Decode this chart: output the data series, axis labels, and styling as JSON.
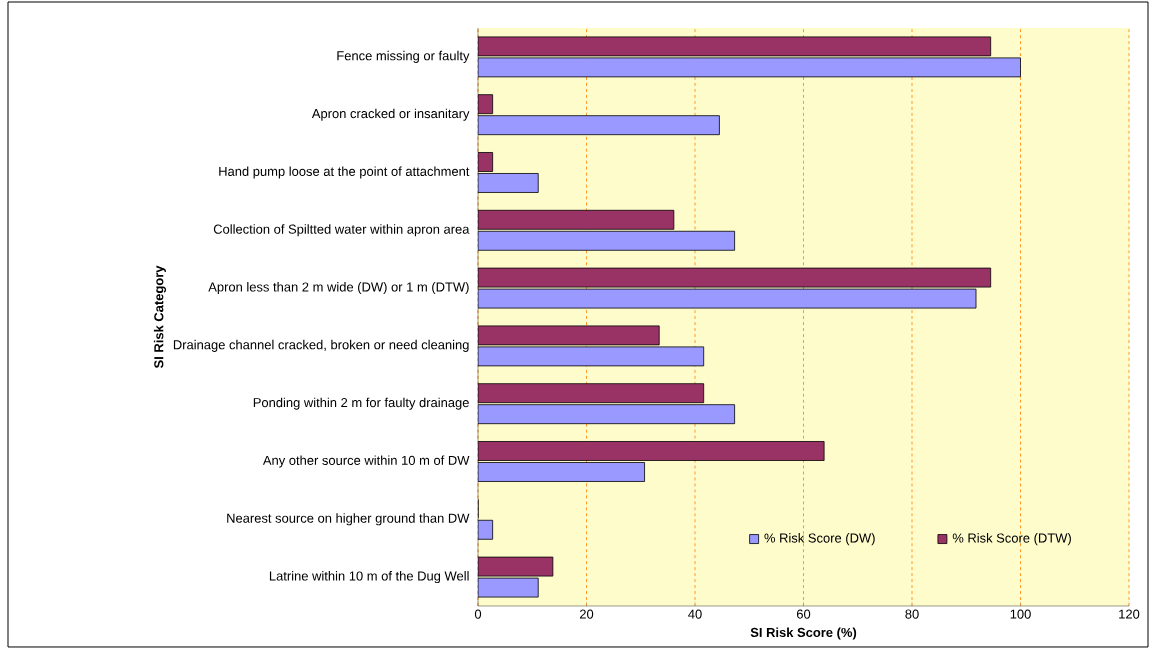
{
  "chart_data": {
    "type": "bar",
    "orientation": "horizontal",
    "xlabel": "SI Risk Score (%)",
    "ylabel": "SI Risk Category",
    "categories": [
      "Fence missing or faulty",
      "Apron cracked or insanitary",
      "Hand pump loose at the point of attachment",
      "Collection of Spiltted water within apron area",
      "Apron less than 2 m wide (DW) or 1 m (DTW)",
      "Drainage channel cracked, broken or need cleaning",
      "Ponding within 2 m for faulty drainage",
      "Any other source within 10 m of DW",
      "Nearest source on higher ground than DW",
      "Latrine within 10 m of the Dug Well"
    ],
    "series": [
      {
        "name": "% Risk Score (DW)",
        "color": "#9999ff",
        "values": [
          100,
          44.5,
          11.1,
          47.3,
          91.8,
          41.6,
          47.3,
          30.7,
          2.7,
          11.1
        ]
      },
      {
        "name": "% Risk Score (DTW)",
        "color": "#993366",
        "values": [
          94.5,
          2.7,
          2.7,
          36.1,
          94.5,
          33.4,
          41.6,
          63.8,
          0,
          13.8
        ]
      }
    ],
    "xlim": [
      0,
      120
    ],
    "xticks": [
      0,
      20,
      40,
      60,
      80,
      100,
      120
    ],
    "grid": "x",
    "legend": "bottom right"
  }
}
